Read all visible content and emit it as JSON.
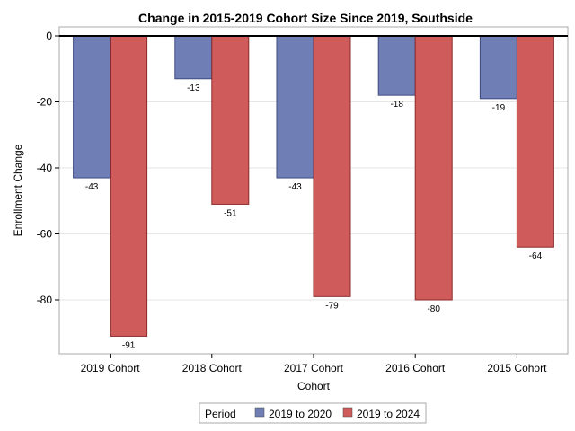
{
  "chart_data": {
    "type": "bar",
    "title": "Change in 2015-2019 Cohort Size Since 2019, Southside",
    "xlabel": "Cohort",
    "ylabel": "Enrollment Change",
    "categories": [
      "2019 Cohort",
      "2018 Cohort",
      "2017 Cohort",
      "2016 Cohort",
      "2015 Cohort"
    ],
    "series": [
      {
        "name": "2019 to 2020",
        "values": [
          -43,
          -13,
          -43,
          -18,
          -19
        ],
        "color": "#6f7fb5"
      },
      {
        "name": "2019 to 2024",
        "values": [
          -91,
          -51,
          -79,
          -80,
          -64
        ],
        "color": "#d05b5b"
      }
    ],
    "ylim": [
      -95,
      0
    ],
    "yticks": [
      0,
      -20,
      -40,
      -60,
      -80
    ],
    "grid": true,
    "legend": {
      "title": "Period",
      "placement": "bottom"
    }
  }
}
